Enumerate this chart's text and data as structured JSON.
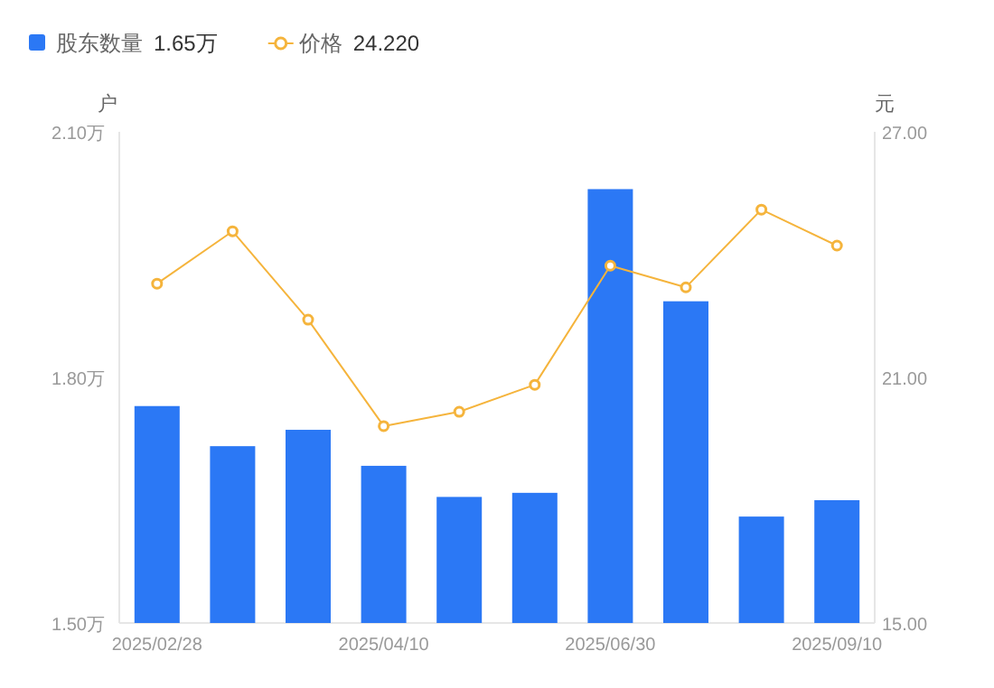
{
  "chart_data": {
    "type": "bar",
    "categories": [
      "2025/02/28",
      null,
      null,
      "2025/04/10",
      null,
      null,
      "2025/06/30",
      null,
      null,
      "2025/09/10"
    ],
    "series": [
      {
        "name": "股东数量",
        "color": "#2b78f5",
        "values": [
          1.765,
          1.716,
          1.736,
          1.692,
          1.654,
          1.659,
          2.03,
          1.893,
          1.63,
          1.65
        ]
      },
      {
        "name": "价格",
        "type": "line",
        "axis": "y2",
        "color": "#f5b43c",
        "marker": "circle",
        "values": [
          23.29,
          24.57,
          22.41,
          19.81,
          20.16,
          20.82,
          23.73,
          23.2,
          25.1,
          24.22
        ]
      }
    ],
    "ylim": [
      1.5,
      2.1
    ],
    "yticks": [
      {
        "value": 1.5,
        "label": "1.50万"
      },
      {
        "value": 1.8,
        "label": "1.80万"
      },
      {
        "value": 2.1,
        "label": "2.10万"
      }
    ],
    "y2lim": [
      15,
      27
    ],
    "y2ticks": [
      {
        "value": 15,
        "label": "15.00"
      },
      {
        "value": 21,
        "label": "21.00"
      },
      {
        "value": 27,
        "label": "27.00"
      }
    ],
    "ylabel": "户",
    "y2label": "元",
    "annotations": [
      "1.65万",
      "24.220"
    ],
    "legend": "top left"
  }
}
